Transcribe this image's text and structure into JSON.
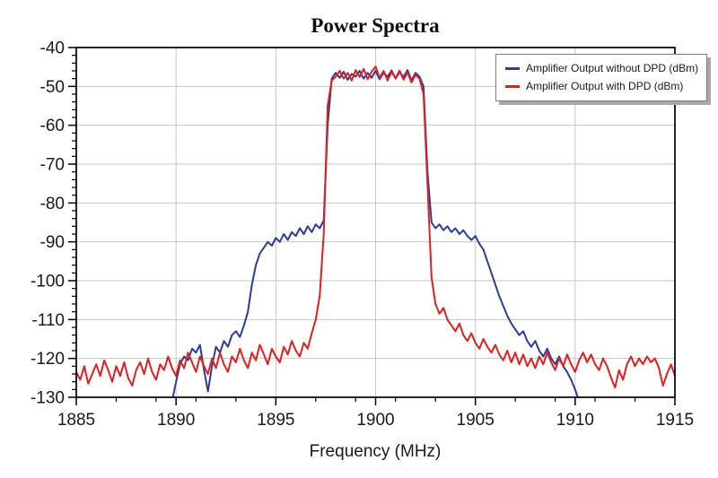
{
  "chart_data": {
    "type": "line",
    "title": "Power Spectra",
    "xlabel": "Frequency (MHz)",
    "ylabel": "",
    "xlim": [
      1885,
      1915
    ],
    "ylim": [
      -130,
      -40
    ],
    "x_ticks": [
      1885,
      1890,
      1895,
      1900,
      1905,
      1910,
      1915
    ],
    "y_ticks": [
      -40,
      -50,
      -60,
      -70,
      -80,
      -90,
      -100,
      -110,
      -120,
      -130
    ],
    "x_minor_step": 2,
    "y_minor_step": 2,
    "grid": "major-both",
    "legend_position": "top-right",
    "axis_color": "#000000",
    "grid_color": "#c6c6c6",
    "text_color": "#1a1a1a",
    "series": [
      {
        "id": "without-dpd",
        "name": "Amplifier Output without DPD (dBm)",
        "color": "#2c3c98",
        "points": [
          [
            1889.8,
            -131.0
          ],
          [
            1890.0,
            -126.0
          ],
          [
            1890.2,
            -121.5
          ],
          [
            1890.4,
            -119.5
          ],
          [
            1890.6,
            -120.5
          ],
          [
            1890.8,
            -117.5
          ],
          [
            1891.0,
            -118.5
          ],
          [
            1891.2,
            -116.5
          ],
          [
            1891.4,
            -123.0
          ],
          [
            1891.6,
            -128.5
          ],
          [
            1891.8,
            -122.0
          ],
          [
            1892.0,
            -117.0
          ],
          [
            1892.2,
            -118.5
          ],
          [
            1892.4,
            -115.5
          ],
          [
            1892.6,
            -117.0
          ],
          [
            1892.8,
            -114.0
          ],
          [
            1893.0,
            -113.0
          ],
          [
            1893.2,
            -114.5
          ],
          [
            1893.4,
            -111.5
          ],
          [
            1893.6,
            -108.0
          ],
          [
            1893.8,
            -101.0
          ],
          [
            1894.0,
            -96.0
          ],
          [
            1894.2,
            -93.0
          ],
          [
            1894.4,
            -91.5
          ],
          [
            1894.6,
            -90.0
          ],
          [
            1894.8,
            -91.0
          ],
          [
            1895.0,
            -89.0
          ],
          [
            1895.2,
            -90.0
          ],
          [
            1895.4,
            -88.0
          ],
          [
            1895.6,
            -89.5
          ],
          [
            1895.8,
            -87.5
          ],
          [
            1896.0,
            -88.5
          ],
          [
            1896.2,
            -86.5
          ],
          [
            1896.4,
            -88.0
          ],
          [
            1896.6,
            -86.0
          ],
          [
            1896.8,
            -87.5
          ],
          [
            1897.0,
            -85.5
          ],
          [
            1897.2,
            -86.5
          ],
          [
            1897.4,
            -84.5
          ],
          [
            1897.6,
            -60.0
          ],
          [
            1897.8,
            -48.0
          ],
          [
            1898.0,
            -46.5
          ],
          [
            1898.2,
            -47.8
          ],
          [
            1898.4,
            -46.2
          ],
          [
            1898.6,
            -48.3
          ],
          [
            1898.8,
            -46.8
          ],
          [
            1899.0,
            -47.5
          ],
          [
            1899.2,
            -46.0
          ],
          [
            1899.4,
            -48.0
          ],
          [
            1899.6,
            -46.5
          ],
          [
            1899.8,
            -47.8
          ],
          [
            1900.0,
            -46.0
          ],
          [
            1900.2,
            -48.2
          ],
          [
            1900.4,
            -46.5
          ],
          [
            1900.6,
            -47.5
          ],
          [
            1900.8,
            -45.9
          ],
          [
            1901.0,
            -48.0
          ],
          [
            1901.2,
            -46.3
          ],
          [
            1901.4,
            -47.6
          ],
          [
            1901.6,
            -45.8
          ],
          [
            1901.8,
            -48.5
          ],
          [
            1902.0,
            -46.5
          ],
          [
            1902.2,
            -47.5
          ],
          [
            1902.4,
            -50.0
          ],
          [
            1902.6,
            -72.0
          ],
          [
            1902.8,
            -85.0
          ],
          [
            1903.0,
            -86.5
          ],
          [
            1903.2,
            -85.5
          ],
          [
            1903.4,
            -87.0
          ],
          [
            1903.6,
            -86.0
          ],
          [
            1903.8,
            -87.5
          ],
          [
            1904.0,
            -86.5
          ],
          [
            1904.2,
            -88.0
          ],
          [
            1904.4,
            -87.0
          ],
          [
            1904.6,
            -88.5
          ],
          [
            1904.8,
            -89.5
          ],
          [
            1905.0,
            -88.5
          ],
          [
            1905.2,
            -90.5
          ],
          [
            1905.4,
            -92.0
          ],
          [
            1905.6,
            -95.0
          ],
          [
            1905.8,
            -98.0
          ],
          [
            1906.0,
            -101.0
          ],
          [
            1906.2,
            -104.0
          ],
          [
            1906.4,
            -106.5
          ],
          [
            1906.6,
            -109.0
          ],
          [
            1906.8,
            -111.0
          ],
          [
            1907.0,
            -112.5
          ],
          [
            1907.2,
            -114.0
          ],
          [
            1907.4,
            -113.0
          ],
          [
            1907.6,
            -115.5
          ],
          [
            1907.8,
            -117.0
          ],
          [
            1908.0,
            -115.5
          ],
          [
            1908.2,
            -118.0
          ],
          [
            1908.4,
            -119.5
          ],
          [
            1908.6,
            -117.5
          ],
          [
            1908.8,
            -120.0
          ],
          [
            1909.0,
            -121.5
          ],
          [
            1909.2,
            -119.5
          ],
          [
            1909.4,
            -122.0
          ],
          [
            1909.6,
            -123.5
          ],
          [
            1909.8,
            -125.5
          ],
          [
            1910.0,
            -128.0
          ],
          [
            1910.2,
            -131.0
          ]
        ]
      },
      {
        "id": "with-dpd",
        "name": "Amplifier Output with DPD (dBm)",
        "color": "#e02020",
        "points": [
          [
            1885.0,
            -123.5
          ],
          [
            1885.2,
            -125.5
          ],
          [
            1885.4,
            -122.0
          ],
          [
            1885.6,
            -126.5
          ],
          [
            1885.8,
            -124.0
          ],
          [
            1886.0,
            -121.5
          ],
          [
            1886.2,
            -124.5
          ],
          [
            1886.4,
            -120.5
          ],
          [
            1886.6,
            -123.0
          ],
          [
            1886.8,
            -126.0
          ],
          [
            1887.0,
            -122.0
          ],
          [
            1887.2,
            -124.5
          ],
          [
            1887.4,
            -121.0
          ],
          [
            1887.6,
            -125.0
          ],
          [
            1887.8,
            -127.0
          ],
          [
            1888.0,
            -123.0
          ],
          [
            1888.2,
            -121.0
          ],
          [
            1888.4,
            -124.0
          ],
          [
            1888.6,
            -120.0
          ],
          [
            1888.8,
            -123.5
          ],
          [
            1889.0,
            -125.5
          ],
          [
            1889.2,
            -121.5
          ],
          [
            1889.4,
            -123.0
          ],
          [
            1889.6,
            -119.5
          ],
          [
            1889.8,
            -122.5
          ],
          [
            1890.0,
            -124.5
          ],
          [
            1890.2,
            -120.5
          ],
          [
            1890.4,
            -122.5
          ],
          [
            1890.6,
            -118.5
          ],
          [
            1890.8,
            -121.0
          ],
          [
            1891.0,
            -123.5
          ],
          [
            1891.2,
            -119.5
          ],
          [
            1891.4,
            -122.0
          ],
          [
            1891.6,
            -124.0
          ],
          [
            1891.8,
            -120.0
          ],
          [
            1892.0,
            -122.5
          ],
          [
            1892.2,
            -118.5
          ],
          [
            1892.4,
            -121.5
          ],
          [
            1892.6,
            -123.5
          ],
          [
            1892.8,
            -119.5
          ],
          [
            1893.0,
            -121.0
          ],
          [
            1893.2,
            -117.5
          ],
          [
            1893.4,
            -120.5
          ],
          [
            1893.6,
            -122.5
          ],
          [
            1893.8,
            -118.5
          ],
          [
            1894.0,
            -120.5
          ],
          [
            1894.2,
            -116.5
          ],
          [
            1894.4,
            -119.0
          ],
          [
            1894.6,
            -121.5
          ],
          [
            1894.8,
            -117.5
          ],
          [
            1895.0,
            -119.5
          ],
          [
            1895.2,
            -121.0
          ],
          [
            1895.4,
            -117.0
          ],
          [
            1895.6,
            -119.0
          ],
          [
            1895.8,
            -115.5
          ],
          [
            1896.0,
            -118.0
          ],
          [
            1896.2,
            -119.5
          ],
          [
            1896.4,
            -116.0
          ],
          [
            1896.6,
            -117.5
          ],
          [
            1896.8,
            -113.5
          ],
          [
            1897.0,
            -110.0
          ],
          [
            1897.2,
            -104.0
          ],
          [
            1897.4,
            -88.0
          ],
          [
            1897.6,
            -55.0
          ],
          [
            1897.8,
            -48.5
          ],
          [
            1898.0,
            -47.5
          ],
          [
            1898.2,
            -46.0
          ],
          [
            1898.4,
            -48.0
          ],
          [
            1898.6,
            -46.5
          ],
          [
            1898.8,
            -48.5
          ],
          [
            1899.0,
            -45.8
          ],
          [
            1899.2,
            -47.6
          ],
          [
            1899.4,
            -45.5
          ],
          [
            1899.6,
            -48.2
          ],
          [
            1899.8,
            -46.2
          ],
          [
            1900.0,
            -44.9
          ],
          [
            1900.2,
            -47.8
          ],
          [
            1900.4,
            -46.0
          ],
          [
            1900.6,
            -48.5
          ],
          [
            1900.8,
            -46.3
          ],
          [
            1901.0,
            -47.9
          ],
          [
            1901.2,
            -45.9
          ],
          [
            1901.4,
            -48.3
          ],
          [
            1901.6,
            -46.4
          ],
          [
            1901.8,
            -49.0
          ],
          [
            1902.0,
            -47.0
          ],
          [
            1902.2,
            -48.0
          ],
          [
            1902.4,
            -52.0
          ],
          [
            1902.6,
            -75.0
          ],
          [
            1902.8,
            -99.0
          ],
          [
            1903.0,
            -106.0
          ],
          [
            1903.2,
            -108.5
          ],
          [
            1903.4,
            -107.0
          ],
          [
            1903.6,
            -110.0
          ],
          [
            1903.8,
            -111.5
          ],
          [
            1904.0,
            -113.0
          ],
          [
            1904.2,
            -111.0
          ],
          [
            1904.4,
            -114.0
          ],
          [
            1904.6,
            -115.5
          ],
          [
            1904.8,
            -113.5
          ],
          [
            1905.0,
            -116.0
          ],
          [
            1905.2,
            -117.5
          ],
          [
            1905.4,
            -115.0
          ],
          [
            1905.6,
            -117.0
          ],
          [
            1905.8,
            -118.5
          ],
          [
            1906.0,
            -116.5
          ],
          [
            1906.2,
            -119.0
          ],
          [
            1906.4,
            -120.5
          ],
          [
            1906.6,
            -118.0
          ],
          [
            1906.8,
            -121.0
          ],
          [
            1907.0,
            -118.5
          ],
          [
            1907.2,
            -121.5
          ],
          [
            1907.4,
            -119.0
          ],
          [
            1907.6,
            -122.0
          ],
          [
            1907.8,
            -120.0
          ],
          [
            1908.0,
            -122.5
          ],
          [
            1908.2,
            -119.5
          ],
          [
            1908.4,
            -121.5
          ],
          [
            1908.6,
            -118.5
          ],
          [
            1908.8,
            -121.0
          ],
          [
            1909.0,
            -123.0
          ],
          [
            1909.2,
            -120.0
          ],
          [
            1909.4,
            -122.0
          ],
          [
            1909.6,
            -119.0
          ],
          [
            1909.8,
            -121.5
          ],
          [
            1910.0,
            -123.5
          ],
          [
            1910.2,
            -120.5
          ],
          [
            1910.4,
            -118.5
          ],
          [
            1910.6,
            -121.0
          ],
          [
            1910.8,
            -119.0
          ],
          [
            1911.0,
            -121.5
          ],
          [
            1911.2,
            -123.0
          ],
          [
            1911.4,
            -120.0
          ],
          [
            1911.6,
            -122.0
          ],
          [
            1911.8,
            -125.0
          ],
          [
            1912.0,
            -127.5
          ],
          [
            1912.2,
            -123.0
          ],
          [
            1912.4,
            -125.5
          ],
          [
            1912.6,
            -121.5
          ],
          [
            1912.8,
            -119.5
          ],
          [
            1913.0,
            -122.0
          ],
          [
            1913.2,
            -120.0
          ],
          [
            1913.4,
            -121.5
          ],
          [
            1913.6,
            -119.5
          ],
          [
            1913.8,
            -121.0
          ],
          [
            1914.0,
            -120.0
          ],
          [
            1914.2,
            -122.5
          ],
          [
            1914.4,
            -127.0
          ],
          [
            1914.6,
            -124.0
          ],
          [
            1914.8,
            -121.5
          ],
          [
            1915.0,
            -124.5
          ]
        ]
      }
    ]
  }
}
